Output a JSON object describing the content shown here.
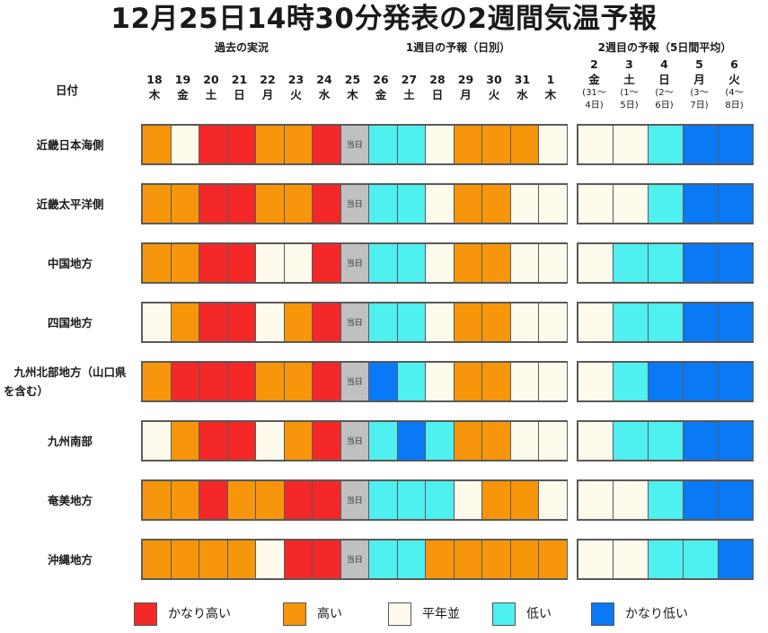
{
  "title": "12月25日14時30分発表の2週間気温予報",
  "sections": {
    "past": "過去の実況",
    "week1": "1週目の予報（日別）",
    "week2": "2週目の予報（5日間平均）"
  },
  "date_header": "日付",
  "today_label": "当日",
  "colors": {
    "very_high": "#f42828",
    "high": "#f7960a",
    "normal": "#fffbec",
    "low": "#4ef0f0",
    "very_low": "#0a79f5",
    "today": "#c0c0c0"
  },
  "chart_data": {
    "type": "heatmap",
    "title": "12月25日14時30分発表の2週間気温予報",
    "days": [
      {
        "date": "18",
        "dow": "木"
      },
      {
        "date": "19",
        "dow": "金"
      },
      {
        "date": "20",
        "dow": "土"
      },
      {
        "date": "21",
        "dow": "日"
      },
      {
        "date": "22",
        "dow": "月"
      },
      {
        "date": "23",
        "dow": "火"
      },
      {
        "date": "24",
        "dow": "水"
      },
      {
        "date": "25",
        "dow": "木"
      },
      {
        "date": "26",
        "dow": "金"
      },
      {
        "date": "27",
        "dow": "土"
      },
      {
        "date": "28",
        "dow": "日"
      },
      {
        "date": "29",
        "dow": "月"
      },
      {
        "date": "30",
        "dow": "火"
      },
      {
        "date": "31",
        "dow": "水"
      },
      {
        "date": "1",
        "dow": "木"
      }
    ],
    "weeks": [
      {
        "date": "2",
        "dow": "金",
        "range1": "(31～",
        "range2": "4日)"
      },
      {
        "date": "3",
        "dow": "土",
        "range1": "(1～",
        "range2": "5日)"
      },
      {
        "date": "4",
        "dow": "日",
        "range1": "(2～",
        "range2": "6日)"
      },
      {
        "date": "5",
        "dow": "月",
        "range1": "(3～",
        "range2": "7日)"
      },
      {
        "date": "6",
        "dow": "火",
        "range1": "(4～",
        "range2": "8日)"
      }
    ],
    "categories": [
      "very_high",
      "high",
      "normal",
      "low",
      "very_low"
    ],
    "rows": [
      {
        "name": "近畿日本海側",
        "name2": "",
        "daily": [
          "high",
          "normal",
          "very_high",
          "very_high",
          "high",
          "high",
          "very_high",
          "today",
          "low",
          "low",
          "normal",
          "high",
          "high",
          "high",
          "normal"
        ],
        "weekly": [
          "normal",
          "normal",
          "low",
          "very_low",
          "very_low"
        ]
      },
      {
        "name": "近畿太平洋側",
        "name2": "",
        "daily": [
          "high",
          "high",
          "very_high",
          "very_high",
          "high",
          "high",
          "very_high",
          "today",
          "low",
          "low",
          "normal",
          "high",
          "high",
          "normal",
          "normal"
        ],
        "weekly": [
          "normal",
          "normal",
          "low",
          "very_low",
          "very_low"
        ]
      },
      {
        "name": "中国地方",
        "name2": "",
        "daily": [
          "high",
          "high",
          "very_high",
          "very_high",
          "normal",
          "normal",
          "very_high",
          "today",
          "low",
          "low",
          "normal",
          "high",
          "high",
          "normal",
          "normal"
        ],
        "weekly": [
          "normal",
          "low",
          "low",
          "very_low",
          "very_low"
        ]
      },
      {
        "name": "四国地方",
        "name2": "",
        "daily": [
          "normal",
          "high",
          "very_high",
          "very_high",
          "normal",
          "high",
          "very_high",
          "today",
          "low",
          "low",
          "normal",
          "high",
          "high",
          "normal",
          "normal"
        ],
        "weekly": [
          "normal",
          "low",
          "low",
          "very_low",
          "very_low"
        ]
      },
      {
        "name": "九州北部地方（山口県",
        "name2": "を含む）",
        "daily": [
          "high",
          "very_high",
          "very_high",
          "very_high",
          "high",
          "high",
          "very_high",
          "today",
          "very_low",
          "low",
          "normal",
          "high",
          "high",
          "normal",
          "normal"
        ],
        "weekly": [
          "normal",
          "low",
          "very_low",
          "very_low",
          "very_low"
        ]
      },
      {
        "name": "九州南部",
        "name2": "",
        "daily": [
          "normal",
          "high",
          "very_high",
          "very_high",
          "normal",
          "high",
          "very_high",
          "today",
          "low",
          "very_low",
          "low",
          "high",
          "high",
          "normal",
          "normal"
        ],
        "weekly": [
          "normal",
          "low",
          "low",
          "very_low",
          "very_low"
        ]
      },
      {
        "name": "奄美地方",
        "name2": "",
        "daily": [
          "high",
          "high",
          "very_high",
          "high",
          "high",
          "very_high",
          "very_high",
          "today",
          "low",
          "low",
          "low",
          "normal",
          "high",
          "high",
          "normal"
        ],
        "weekly": [
          "normal",
          "normal",
          "low",
          "very_low",
          "very_low"
        ]
      },
      {
        "name": "沖縄地方",
        "name2": "",
        "daily": [
          "high",
          "high",
          "high",
          "high",
          "normal",
          "very_high",
          "very_high",
          "today",
          "low",
          "low",
          "high",
          "high",
          "high",
          "high",
          "high"
        ],
        "weekly": [
          "normal",
          "normal",
          "low",
          "low",
          "very_low"
        ]
      }
    ]
  },
  "legend": [
    {
      "key": "very_high",
      "label": "かなり高い"
    },
    {
      "key": "high",
      "label": "高い"
    },
    {
      "key": "normal",
      "label": "平年並"
    },
    {
      "key": "low",
      "label": "低い"
    },
    {
      "key": "very_low",
      "label": "かなり低い"
    }
  ]
}
